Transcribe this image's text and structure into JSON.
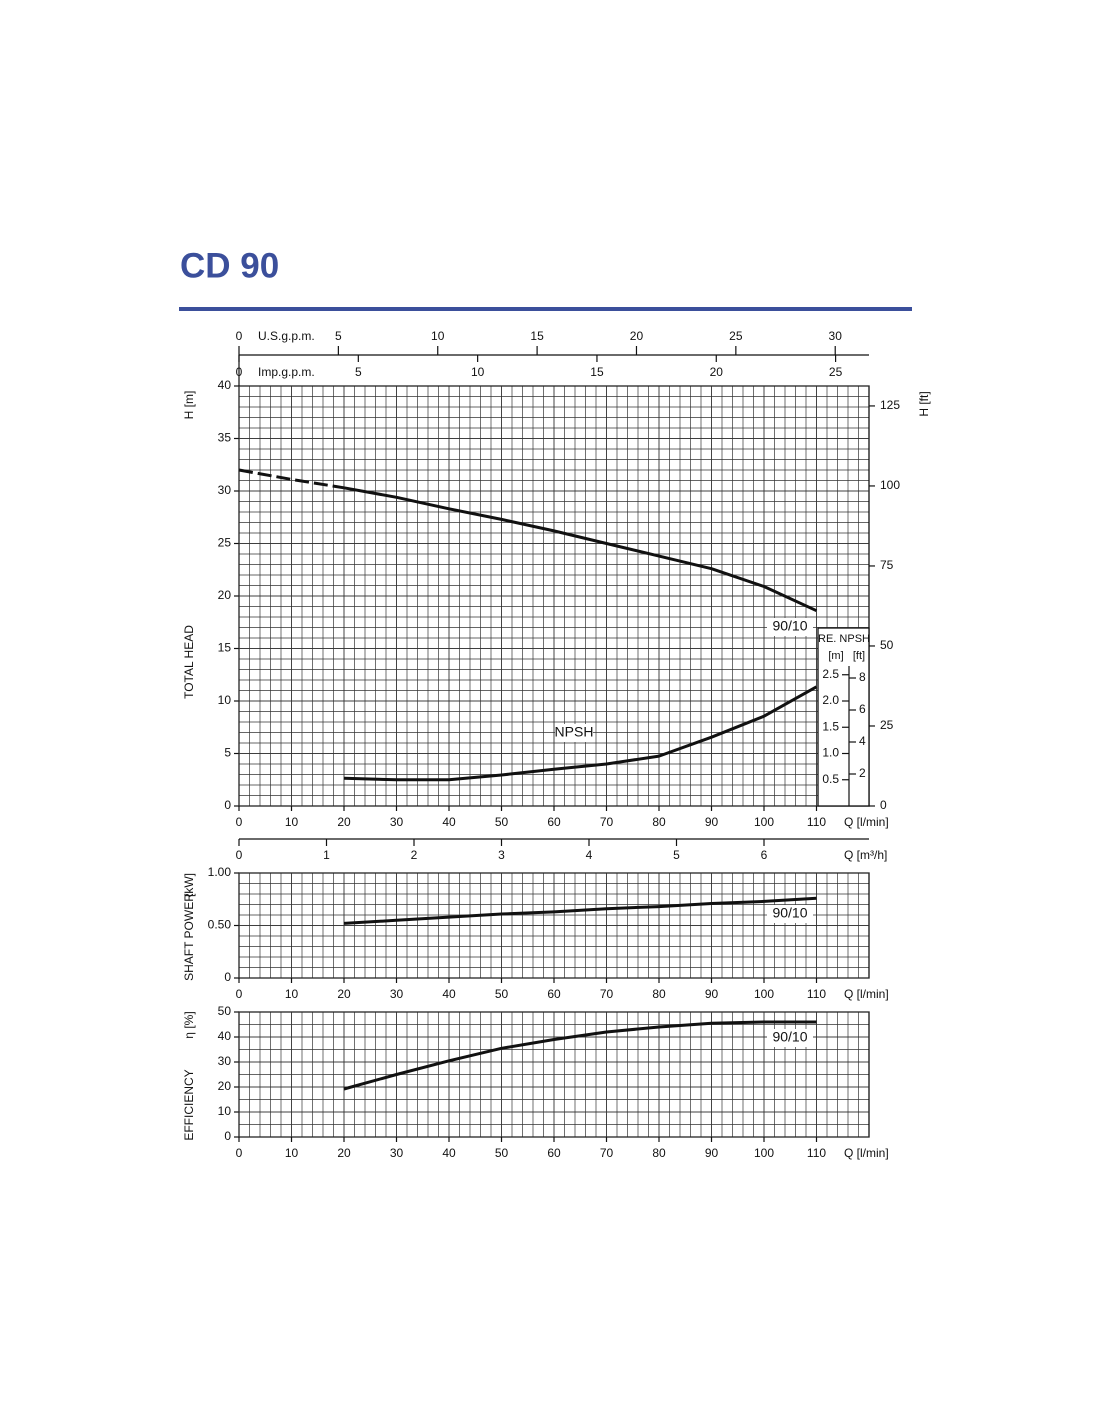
{
  "title": "CD 90",
  "chart_data": [
    {
      "type": "line",
      "x": [
        0,
        10,
        20,
        30,
        40,
        50,
        60,
        70,
        80,
        90,
        100,
        110
      ],
      "xlim": [
        0,
        120
      ],
      "xticks": [
        0,
        10,
        20,
        30,
        40,
        50,
        60,
        70,
        80,
        90,
        100,
        110
      ],
      "xlabel": "Q [l/min]",
      "ylim": [
        0,
        40
      ],
      "yticks": [
        0,
        5,
        10,
        15,
        20,
        25,
        30,
        35,
        40
      ],
      "ylabel": "H [m]",
      "ylabel_side": "TOTAL HEAD",
      "y2lim": [
        0,
        131.23
      ],
      "y2ticks": [
        0,
        25,
        50,
        75,
        100,
        125
      ],
      "y2label": "H [ft]",
      "grid": true,
      "x_minor_step": 2,
      "y_minor_step": 1,
      "series": [
        {
          "name": "90/10",
          "color": "#111111",
          "values": [
            32.0,
            31.1,
            30.3,
            29.4,
            28.3,
            27.3,
            26.2,
            25.0,
            23.8,
            22.6,
            20.9,
            18.6
          ],
          "dashed_xlim": [
            0,
            20
          ]
        },
        {
          "name": "NPSH",
          "color": "#111111",
          "axis": "npsh",
          "values": [
            null,
            null,
            0.53,
            0.5,
            0.5,
            0.59,
            0.7,
            0.8,
            0.95,
            1.31,
            1.71,
            2.27
          ]
        }
      ],
      "npsh_title": "RE. NPSH",
      "npsh_m_label": "[m]",
      "npsh_ft_label": "[ft]",
      "npsh_mlim": [
        0,
        8
      ],
      "npsh_mticks": [
        0.5,
        {
          "value": 1,
          "label": "1.0"
        },
        1.5,
        {
          "value": 2,
          "label": "2.0"
        },
        2.5
      ],
      "npsh_ftlim": [
        0,
        26.25
      ],
      "npsh_ftticks": [
        2,
        4,
        6,
        8
      ],
      "us_gpm_label": "U.S.g.p.m.",
      "us_gpm_xlim": [
        0,
        31.7
      ],
      "us_gpm_ticks": [
        0,
        5,
        10,
        15,
        20,
        25,
        30
      ],
      "imp_gpm_label": "Imp.g.p.m.",
      "imp_gpm_xlim": [
        0,
        26.4
      ],
      "imp_gpm_ticks": [
        0,
        5,
        10,
        15,
        20,
        25
      ],
      "m3h_label": "Q [m³/h]",
      "m3h_xlim": [
        0,
        7.2
      ],
      "m3h_ticks": [
        0,
        1,
        2,
        3,
        4,
        5,
        6
      ]
    },
    {
      "type": "line",
      "x": [
        20,
        30,
        40,
        50,
        60,
        70,
        80,
        90,
        100,
        110
      ],
      "xlim": [
        0,
        120
      ],
      "xticks": [
        0,
        10,
        20,
        30,
        40,
        50,
        60,
        70,
        80,
        90,
        100,
        110
      ],
      "xlabel": "Q [l/min]",
      "ylim": [
        0,
        1
      ],
      "yticks": [
        0,
        {
          "value": 0.5,
          "label": "0.50"
        },
        {
          "value": 1,
          "label": "1.00"
        }
      ],
      "ylabel": "[kW]",
      "ylabel_side": "SHAFT POWER",
      "grid": true,
      "x_minor_step": 2,
      "y_minor_step": 0.1,
      "series": [
        {
          "name": "90/10",
          "color": "#111111",
          "values": [
            0.52,
            0.55,
            0.58,
            0.61,
            0.63,
            0.66,
            0.68,
            0.71,
            0.73,
            0.76
          ]
        }
      ]
    },
    {
      "type": "line",
      "x": [
        20,
        30,
        40,
        50,
        60,
        70,
        80,
        90,
        100,
        110
      ],
      "xlim": [
        0,
        120
      ],
      "xticks": [
        0,
        10,
        20,
        30,
        40,
        50,
        60,
        70,
        80,
        90,
        100,
        110
      ],
      "xlabel": "Q [l/min]",
      "ylim": [
        0,
        50
      ],
      "yticks": [
        0,
        10,
        20,
        30,
        40,
        50
      ],
      "ylabel": "η [%]",
      "ylabel_side": "EFFICIENCY",
      "grid": true,
      "x_minor_step": 2,
      "y_minor_step": 5,
      "series": [
        {
          "name": "90/10",
          "color": "#111111",
          "values": [
            19.2,
            25,
            30.5,
            35.5,
            39,
            42,
            44,
            45.5,
            46,
            46
          ]
        }
      ]
    }
  ]
}
